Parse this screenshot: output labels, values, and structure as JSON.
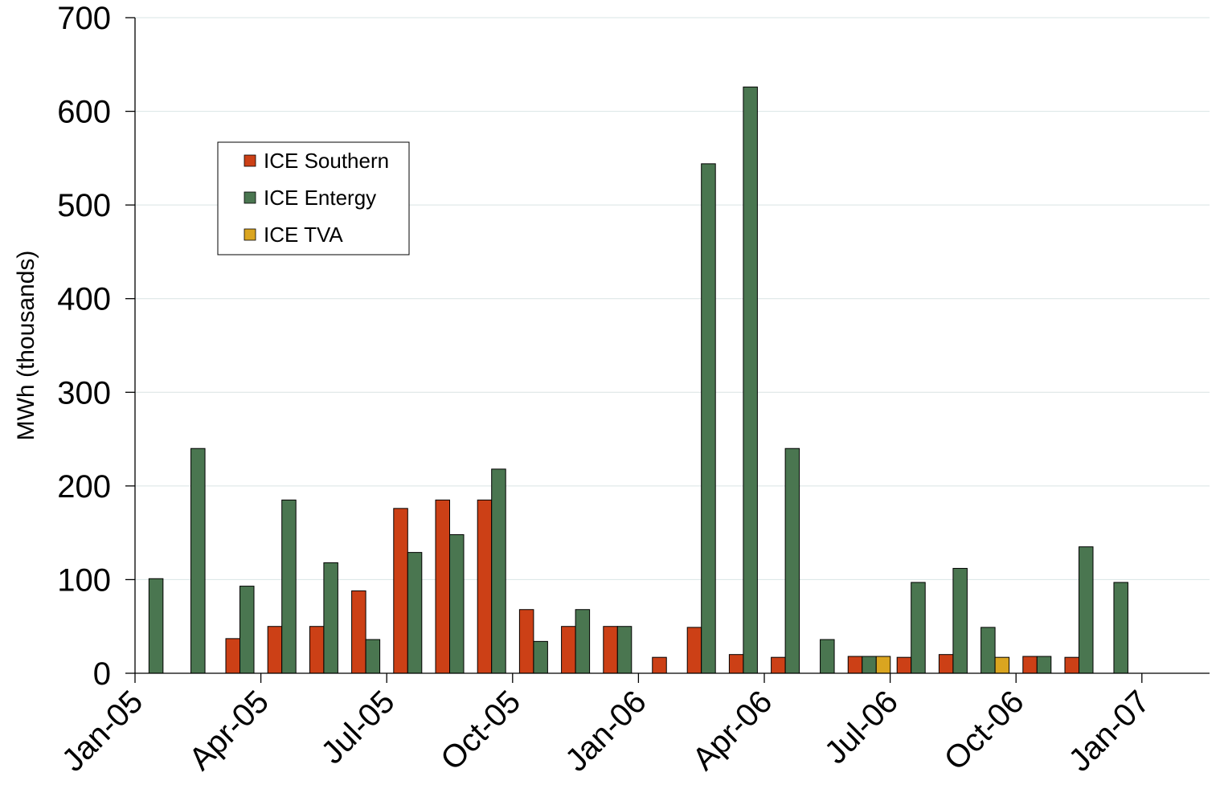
{
  "chart_data": {
    "type": "bar",
    "title": "",
    "xlabel": "",
    "ylabel": "MWh (thousands)",
    "ylim": [
      0,
      700
    ],
    "yticks": [
      0,
      100,
      200,
      300,
      400,
      500,
      600,
      700
    ],
    "xticks": [
      "Jan-05",
      "Apr-05",
      "Jul-05",
      "Oct-05",
      "Jan-06",
      "Apr-06",
      "Jul-06",
      "Oct-06",
      "Jan-07"
    ],
    "grid": true,
    "legend_position": "upper-left",
    "categories": [
      "Jan-05",
      "Feb-05",
      "Mar-05",
      "Apr-05",
      "May-05",
      "Jun-05",
      "Jul-05",
      "Aug-05",
      "Sep-05",
      "Oct-05",
      "Nov-05",
      "Dec-05",
      "Jan-06",
      "Feb-06",
      "Mar-06",
      "Apr-06",
      "May-06",
      "Jun-06",
      "Jul-06",
      "Aug-06",
      "Sep-06",
      "Oct-06",
      "Nov-06",
      "Dec-06"
    ],
    "series": [
      {
        "name": "ICE Southern",
        "color": "#cc4016",
        "values": [
          0,
          0,
          37,
          50,
          50,
          88,
          176,
          185,
          185,
          68,
          50,
          50,
          17,
          49,
          20,
          17,
          0,
          18,
          17,
          20,
          0,
          18,
          17,
          0
        ]
      },
      {
        "name": "ICE Entergy",
        "color": "#4a7650",
        "values": [
          101,
          240,
          93,
          185,
          118,
          36,
          129,
          148,
          218,
          34,
          68,
          50,
          0,
          544,
          626,
          240,
          36,
          18,
          97,
          112,
          49,
          18,
          135,
          97
        ]
      },
      {
        "name": "ICE TVA",
        "color": "#daa520",
        "values": [
          0,
          0,
          0,
          0,
          0,
          0,
          0,
          0,
          0,
          0,
          0,
          0,
          0,
          0,
          0,
          0,
          0,
          18,
          0,
          0,
          17,
          0,
          0,
          0
        ]
      }
    ]
  }
}
